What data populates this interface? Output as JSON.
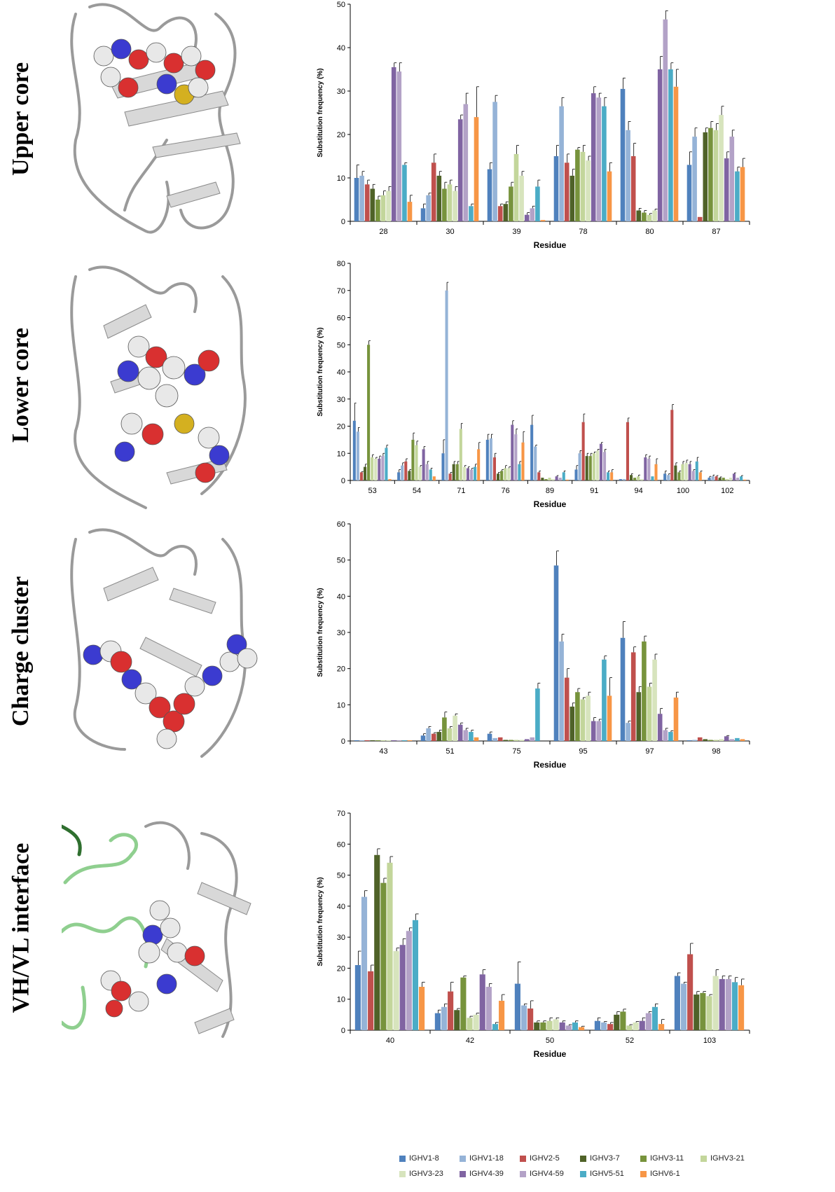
{
  "panels": [
    {
      "label": "Upper core"
    },
    {
      "label": "Lower core"
    },
    {
      "label": "Charge cluster"
    },
    {
      "label": "VH/VL interface"
    }
  ],
  "legend": {
    "items": [
      {
        "name": "IGHV1-8",
        "color": "#4f81bd"
      },
      {
        "name": "IGHV1-18",
        "color": "#95b3d7"
      },
      {
        "name": "IGHV2-5",
        "color": "#c0504d"
      },
      {
        "name": "IGHV3-7",
        "color": "#4f6228"
      },
      {
        "name": "IGHV3-11",
        "color": "#77933c"
      },
      {
        "name": "IGHV3-21",
        "color": "#c3d69b"
      },
      {
        "name": "IGHV3-23",
        "color": "#d7e4bd"
      },
      {
        "name": "IGHV4-39",
        "color": "#8064a2"
      },
      {
        "name": "IGHV4-59",
        "color": "#b3a2c7"
      },
      {
        "name": "IGHV5-51",
        "color": "#4bacc6"
      },
      {
        "name": "IGHV6-1",
        "color": "#f79646"
      }
    ]
  },
  "chart_data": [
    {
      "type": "bar",
      "xlabel": "Residue",
      "ylabel": "Substitution frequency (%)",
      "ylim": [
        0,
        50
      ],
      "yticks": [
        0,
        10,
        20,
        30,
        40,
        50
      ],
      "categories": [
        "28",
        "30",
        "39",
        "78",
        "80",
        "87"
      ],
      "series": [
        {
          "name": "IGHV1-8",
          "values": [
            10,
            3,
            12,
            15,
            30.5,
            13
          ],
          "errors": [
            3,
            1,
            1.5,
            2.5,
            2.5,
            3
          ]
        },
        {
          "name": "IGHV1-18",
          "values": [
            10.5,
            6,
            27.5,
            26.5,
            21,
            19.5
          ],
          "errors": [
            1,
            0.5,
            1.5,
            2,
            2,
            2
          ]
        },
        {
          "name": "IGHV2-5",
          "values": [
            8.5,
            13.5,
            3.5,
            13.5,
            15,
            1
          ],
          "errors": [
            1,
            2,
            0.5,
            2,
            3,
            0
          ]
        },
        {
          "name": "IGHV3-7",
          "values": [
            7.5,
            10.5,
            4,
            10.5,
            2.5,
            20.5
          ],
          "errors": [
            1,
            1,
            0.5,
            1.5,
            0.5,
            1
          ]
        },
        {
          "name": "IGHV3-11",
          "values": [
            5,
            7.5,
            8,
            16.5,
            2,
            21.5
          ],
          "errors": [
            0.8,
            1.5,
            1,
            0.5,
            0.5,
            1.5
          ]
        },
        {
          "name": "IGHV3-21",
          "values": [
            6,
            8.5,
            15.5,
            16,
            1.5,
            21
          ],
          "errors": [
            1,
            1,
            2,
            1.5,
            0.3,
            1.5
          ]
        },
        {
          "name": "IGHV3-23",
          "values": [
            7,
            7,
            10.5,
            14,
            2.5,
            24.5
          ],
          "errors": [
            1,
            1,
            1,
            1,
            0.3,
            2
          ]
        },
        {
          "name": "IGHV4-39",
          "values": [
            35.5,
            23.5,
            1.5,
            29.5,
            35,
            14.5
          ],
          "errors": [
            1,
            1,
            0.5,
            1.5,
            3,
            1.5
          ]
        },
        {
          "name": "IGHV4-59",
          "values": [
            34.5,
            27,
            3,
            28.5,
            46.5,
            19.5
          ],
          "errors": [
            2,
            2.5,
            0.5,
            1,
            2,
            1.5
          ]
        },
        {
          "name": "IGHV5-51",
          "values": [
            13,
            3.5,
            8,
            26.5,
            35,
            11.5
          ],
          "errors": [
            0.5,
            0.5,
            1.5,
            2,
            1.5,
            1
          ]
        },
        {
          "name": "IGHV6-1",
          "values": [
            4.5,
            24,
            0.3,
            11.5,
            31,
            12.5
          ],
          "errors": [
            1.5,
            7,
            0,
            2,
            4,
            2
          ]
        }
      ]
    },
    {
      "type": "bar",
      "xlabel": "Residue",
      "ylabel": "Substitution frequency (%)",
      "ylim": [
        0,
        80
      ],
      "yticks": [
        0,
        10,
        20,
        30,
        40,
        50,
        60,
        70,
        80
      ],
      "categories": [
        "53",
        "54",
        "71",
        "76",
        "89",
        "91",
        "94",
        "100",
        "102"
      ],
      "series": [
        {
          "name": "IGHV1-8",
          "values": [
            22,
            3,
            10,
            15,
            20.5,
            4,
            0.5,
            2.5,
            1
          ],
          "errors": [
            6.5,
            1,
            5,
            2,
            3.5,
            1.5,
            0,
            1,
            0.5
          ]
        },
        {
          "name": "IGHV1-18",
          "values": [
            18,
            5.5,
            70,
            15.5,
            12.5,
            10,
            0.5,
            2,
            1.5
          ],
          "errors": [
            1.5,
            1,
            3,
            1.5,
            0.5,
            1,
            0,
            0.5,
            0.5
          ]
        },
        {
          "name": "IGHV2-5",
          "values": [
            3,
            7,
            2.5,
            8.5,
            3,
            21.5,
            21.5,
            26,
            1.5
          ],
          "errors": [
            0.3,
            1,
            0.5,
            1.5,
            0.5,
            3,
            1.5,
            2,
            0.3
          ]
        },
        {
          "name": "IGHV3-7",
          "values": [
            5,
            3.5,
            6,
            2.5,
            1,
            9,
            2,
            5.5,
            1
          ],
          "errors": [
            1,
            0.5,
            1,
            0.5,
            0,
            1,
            0.5,
            1,
            0.3
          ]
        },
        {
          "name": "IGHV3-11",
          "values": [
            50,
            15,
            6,
            3.5,
            0.5,
            9,
            1,
            3,
            1
          ],
          "errors": [
            1.5,
            2.5,
            1,
            0.5,
            0,
            1,
            0,
            0.5,
            0
          ]
        },
        {
          "name": "IGHV3-21",
          "values": [
            8.5,
            13,
            19,
            4.5,
            1,
            10,
            1.5,
            6,
            0.5
          ],
          "errors": [
            1,
            1.5,
            2,
            1,
            0,
            0.5,
            0.5,
            1,
            0
          ]
        },
        {
          "name": "IGHV3-23",
          "values": [
            8,
            5,
            5,
            4.5,
            0.5,
            11,
            0.5,
            6.5,
            1
          ],
          "errors": [
            0.5,
            0.5,
            0.5,
            0.5,
            0,
            0.5,
            0,
            1,
            0
          ]
        },
        {
          "name": "IGHV4-39",
          "values": [
            8,
            11.5,
            4.5,
            20.5,
            1.5,
            13.5,
            8.5,
            6,
            2.5
          ],
          "errors": [
            1,
            1,
            0.5,
            1.5,
            0.3,
            0.5,
            1,
            1,
            0.3
          ]
        },
        {
          "name": "IGHV4-59",
          "values": [
            9,
            6,
            4,
            17,
            1,
            10.5,
            8,
            3.5,
            1
          ],
          "errors": [
            1,
            1,
            0.5,
            2,
            0,
            1,
            1,
            0.5,
            0
          ]
        },
        {
          "name": "IGHV5-51",
          "values": [
            12,
            4,
            5,
            6,
            3,
            3,
            1.5,
            7,
            1.5
          ],
          "errors": [
            1,
            0.5,
            1,
            1,
            0.5,
            0.5,
            0,
            1.5,
            0.3
          ]
        },
        {
          "name": "IGHV6-1",
          "values": [
            0.5,
            1.5,
            11.5,
            14,
            0.3,
            3,
            6,
            3,
            0.3
          ],
          "errors": [
            0,
            0,
            2.5,
            4,
            0,
            1,
            2,
            0.5,
            0
          ]
        }
      ]
    },
    {
      "type": "bar",
      "xlabel": "Residue",
      "ylabel": "Substitution frequency (%)",
      "ylim": [
        0,
        60
      ],
      "yticks": [
        0,
        10,
        20,
        30,
        40,
        50,
        60
      ],
      "categories": [
        "43",
        "51",
        "75",
        "95",
        "97",
        "98"
      ],
      "series": [
        {
          "name": "IGHV1-8",
          "values": [
            0.2,
            1.5,
            2,
            48.5,
            28.5,
            0.2
          ],
          "errors": [
            0,
            0.5,
            0.5,
            4,
            4.5,
            0
          ]
        },
        {
          "name": "IGHV1-18",
          "values": [
            0.2,
            3.5,
            0.8,
            27.5,
            5,
            0.3
          ],
          "errors": [
            0,
            0.5,
            0,
            2,
            0.5,
            0
          ]
        },
        {
          "name": "IGHV2-5",
          "values": [
            0.2,
            2,
            1,
            17.5,
            24.5,
            1
          ],
          "errors": [
            0,
            0.3,
            0,
            2.5,
            1.5,
            0
          ]
        },
        {
          "name": "IGHV3-7",
          "values": [
            0.2,
            2.5,
            0.3,
            9.5,
            13.5,
            0.5
          ],
          "errors": [
            0,
            0.5,
            0,
            1,
            1.5,
            0
          ]
        },
        {
          "name": "IGHV3-11",
          "values": [
            0.2,
            6.5,
            0.3,
            13.5,
            27.5,
            0.3
          ],
          "errors": [
            0,
            1.5,
            0,
            1,
            1.5,
            0
          ]
        },
        {
          "name": "IGHV3-21",
          "values": [
            0.2,
            3.5,
            0.3,
            11.5,
            15,
            0.3
          ],
          "errors": [
            0,
            0.5,
            0,
            0.5,
            1,
            0
          ]
        },
        {
          "name": "IGHV3-23",
          "values": [
            0.2,
            7,
            0.3,
            12.5,
            22.5,
            0.5
          ],
          "errors": [
            0,
            0.5,
            0,
            1,
            1.5,
            0
          ]
        },
        {
          "name": "IGHV4-39",
          "values": [
            0.2,
            4.5,
            0.5,
            5.5,
            7.5,
            1.3
          ],
          "errors": [
            0,
            0.5,
            0,
            1,
            1.5,
            0.2
          ]
        },
        {
          "name": "IGHV4-59",
          "values": [
            0.2,
            3,
            1,
            5.5,
            3,
            0.5
          ],
          "errors": [
            0,
            0.5,
            0,
            0.5,
            0.5,
            0
          ]
        },
        {
          "name": "IGHV5-51",
          "values": [
            0.2,
            2.5,
            14.5,
            22.5,
            2.5,
            0.8
          ],
          "errors": [
            0,
            0.5,
            1.5,
            1,
            0.3,
            0
          ]
        },
        {
          "name": "IGHV6-1",
          "values": [
            0.2,
            1,
            0,
            12.5,
            12,
            0.5
          ],
          "errors": [
            0,
            0,
            0,
            5,
            1.5,
            0
          ]
        }
      ]
    },
    {
      "type": "bar",
      "xlabel": "Residue",
      "ylabel": "Substitution frequency (%)",
      "ylim": [
        0,
        70
      ],
      "yticks": [
        0,
        10,
        20,
        30,
        40,
        50,
        60,
        70
      ],
      "categories": [
        "40",
        "42",
        "50",
        "52",
        "103"
      ],
      "series": [
        {
          "name": "IGHV1-8",
          "values": [
            21,
            5.5,
            15,
            3,
            17.5
          ],
          "errors": [
            4.5,
            1,
            7,
            1,
            1
          ]
        },
        {
          "name": "IGHV1-18",
          "values": [
            43,
            7.5,
            8,
            2.5,
            15
          ],
          "errors": [
            2,
            1,
            0.5,
            0.3,
            0.5
          ]
        },
        {
          "name": "IGHV2-5",
          "values": [
            19,
            12.5,
            7,
            2,
            24.5
          ],
          "errors": [
            2,
            3,
            2.5,
            0.5,
            3.5
          ]
        },
        {
          "name": "IGHV3-7",
          "values": [
            56.5,
            6.5,
            2.5,
            5,
            11.5
          ],
          "errors": [
            2,
            0.5,
            0.5,
            1,
            1
          ]
        },
        {
          "name": "IGHV3-11",
          "values": [
            47.5,
            17,
            2.5,
            6,
            12
          ],
          "errors": [
            1.5,
            0.5,
            0.5,
            0.8,
            0.5
          ]
        },
        {
          "name": "IGHV3-21",
          "values": [
            54,
            4,
            3,
            1.5,
            11
          ],
          "errors": [
            2,
            0.5,
            1,
            0.3,
            0.5
          ]
        },
        {
          "name": "IGHV3-23",
          "values": [
            25.5,
            5,
            3.5,
            2.5,
            17.5
          ],
          "errors": [
            1,
            0.5,
            0.5,
            0.3,
            2
          ]
        },
        {
          "name": "IGHV4-39",
          "values": [
            27.5,
            18,
            2.5,
            3,
            16.5
          ],
          "errors": [
            2,
            1.5,
            0.5,
            1,
            1
          ]
        },
        {
          "name": "IGHV4-59",
          "values": [
            32,
            14,
            1.5,
            5.5,
            16.5
          ],
          "errors": [
            1,
            1,
            0.3,
            0.5,
            1
          ]
        },
        {
          "name": "IGHV5-51",
          "values": [
            35.5,
            2,
            2.5,
            7.5,
            15.5
          ],
          "errors": [
            2,
            0.5,
            0.5,
            1,
            1.5
          ]
        },
        {
          "name": "IGHV6-1",
          "values": [
            14,
            9.5,
            1,
            2,
            14.5
          ],
          "errors": [
            1.5,
            2,
            0.3,
            1.5,
            2
          ]
        }
      ]
    }
  ]
}
